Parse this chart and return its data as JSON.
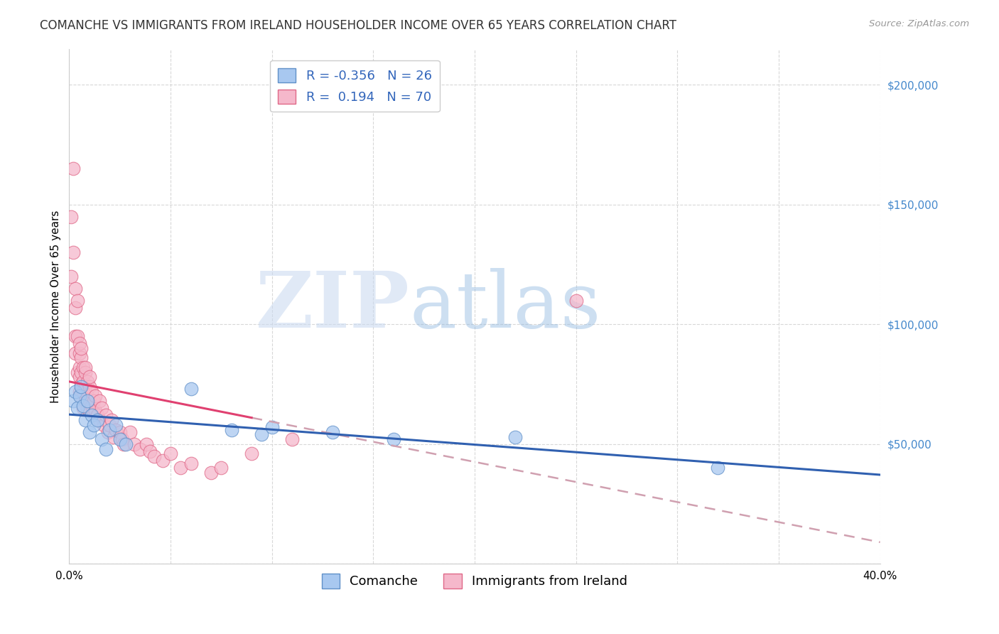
{
  "title": "COMANCHE VS IMMIGRANTS FROM IRELAND HOUSEHOLDER INCOME OVER 65 YEARS CORRELATION CHART",
  "source": "Source: ZipAtlas.com",
  "ylabel": "Householder Income Over 65 years",
  "xlim": [
    0.0,
    0.4
  ],
  "ylim": [
    0,
    215000
  ],
  "yticks": [
    0,
    50000,
    100000,
    150000,
    200000
  ],
  "xticks": [
    0.0,
    0.05,
    0.1,
    0.15,
    0.2,
    0.25,
    0.3,
    0.35,
    0.4
  ],
  "grid_color": "#d8d8d8",
  "background_color": "#ffffff",
  "watermark_zip": "ZIP",
  "watermark_atlas": "atlas",
  "comanche_color": "#a8c8f0",
  "ireland_color": "#f5b8cb",
  "comanche_edge": "#6090c8",
  "ireland_edge": "#e06888",
  "trend_blue": "#3060b0",
  "trend_pink": "#e04070",
  "trend_dashed_color": "#d0a0b0",
  "R_comanche": -0.356,
  "N_comanche": 26,
  "R_ireland": 0.194,
  "N_ireland": 70,
  "comanche_x": [
    0.002,
    0.003,
    0.004,
    0.005,
    0.006,
    0.007,
    0.008,
    0.009,
    0.01,
    0.011,
    0.012,
    0.014,
    0.016,
    0.018,
    0.02,
    0.023,
    0.025,
    0.028,
    0.06,
    0.08,
    0.095,
    0.1,
    0.13,
    0.16,
    0.22,
    0.32
  ],
  "comanche_y": [
    68000,
    72000,
    65000,
    70000,
    74000,
    66000,
    60000,
    68000,
    55000,
    62000,
    58000,
    60000,
    52000,
    48000,
    56000,
    58000,
    52000,
    50000,
    73000,
    56000,
    54000,
    57000,
    55000,
    52000,
    53000,
    40000
  ],
  "ireland_x": [
    0.001,
    0.001,
    0.002,
    0.002,
    0.003,
    0.003,
    0.003,
    0.003,
    0.004,
    0.004,
    0.004,
    0.005,
    0.005,
    0.005,
    0.005,
    0.005,
    0.006,
    0.006,
    0.006,
    0.006,
    0.006,
    0.007,
    0.007,
    0.007,
    0.007,
    0.008,
    0.008,
    0.008,
    0.008,
    0.009,
    0.009,
    0.009,
    0.01,
    0.01,
    0.01,
    0.011,
    0.011,
    0.012,
    0.012,
    0.013,
    0.013,
    0.014,
    0.015,
    0.015,
    0.016,
    0.017,
    0.018,
    0.019,
    0.02,
    0.021,
    0.022,
    0.023,
    0.025,
    0.026,
    0.027,
    0.03,
    0.032,
    0.035,
    0.038,
    0.04,
    0.042,
    0.046,
    0.05,
    0.055,
    0.06,
    0.07,
    0.075,
    0.09,
    0.11,
    0.25
  ],
  "ireland_y": [
    145000,
    120000,
    165000,
    130000,
    115000,
    107000,
    95000,
    88000,
    95000,
    110000,
    80000,
    82000,
    78000,
    88000,
    72000,
    92000,
    86000,
    90000,
    80000,
    75000,
    70000,
    82000,
    76000,
    72000,
    65000,
    80000,
    74000,
    68000,
    82000,
    76000,
    70000,
    65000,
    74000,
    68000,
    78000,
    72000,
    66000,
    68000,
    63000,
    70000,
    64000,
    62000,
    68000,
    60000,
    65000,
    58000,
    62000,
    55000,
    58000,
    60000,
    53000,
    56000,
    55000,
    52000,
    50000,
    55000,
    50000,
    48000,
    50000,
    47000,
    45000,
    43000,
    46000,
    40000,
    42000,
    38000,
    40000,
    46000,
    52000,
    110000
  ],
  "trend_pink_x_solid_end": 0.09,
  "legend_fontsize": 13,
  "axis_label_fontsize": 11,
  "title_fontsize": 12,
  "tick_fontsize": 11,
  "dot_size": 180
}
